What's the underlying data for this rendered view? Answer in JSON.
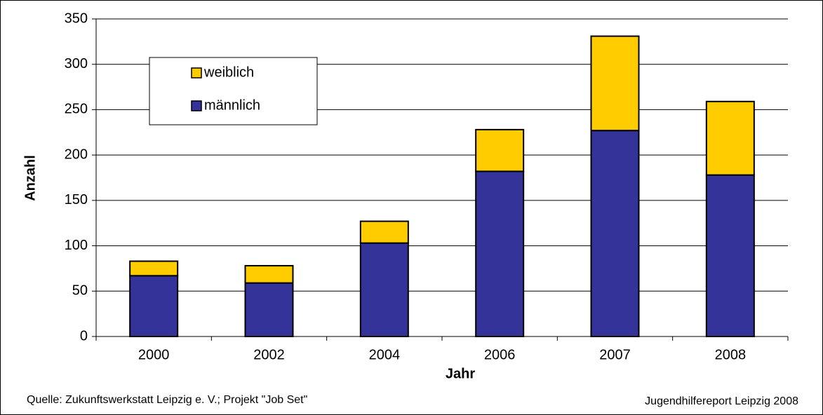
{
  "chart_data": {
    "type": "stacked_bar",
    "categories": [
      "2000",
      "2002",
      "2004",
      "2006",
      "2007",
      "2008"
    ],
    "series": [
      {
        "name": "männlich",
        "color": "#333399",
        "values": [
          67,
          59,
          103,
          182,
          227,
          178
        ]
      },
      {
        "name": "weiblich",
        "color": "#ffcc00",
        "values": [
          16,
          19,
          24,
          46,
          104,
          81
        ]
      }
    ],
    "ylim": [
      0,
      350
    ],
    "yticks": [
      0,
      50,
      100,
      150,
      200,
      250,
      300,
      350
    ],
    "grid": true,
    "ylabel": "Anzahl",
    "xlabel": "Jahr",
    "source": "Quelle: Zukunftswerkstatt Leipzig e. V.; Projekt \"Job Set\"",
    "note": "Jugendhilfereport Leipzig 2008",
    "legend": "upper left"
  }
}
